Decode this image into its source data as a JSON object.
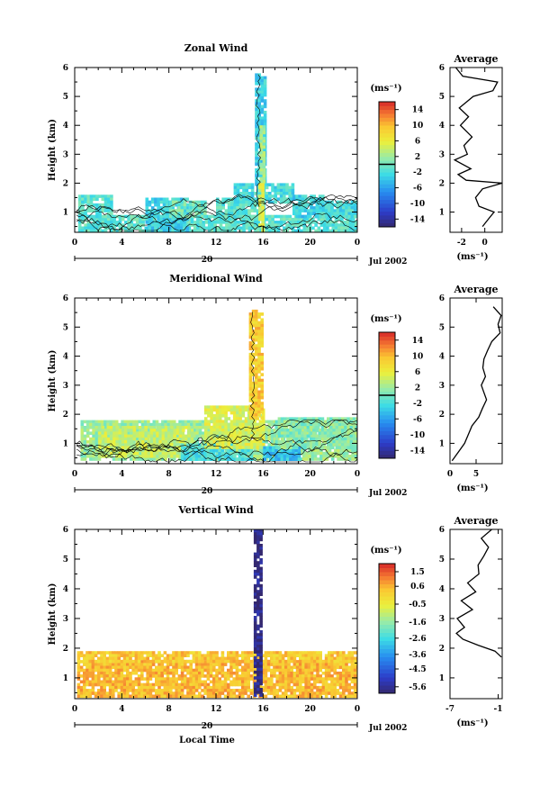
{
  "figure": {
    "xlabel": "Local Time",
    "date_label": "Jul 2002",
    "day_label": "20",
    "cbar_unit": "(ms⁻¹)",
    "profile_title": "Average",
    "profile_unit": "(ms⁻¹)"
  },
  "chart_data": [
    {
      "type": "heatmap",
      "title": "Zonal Wind",
      "ylabel": "Height (km)",
      "xlabel": "",
      "x_range": [
        0,
        24
      ],
      "y_range": [
        0.3,
        6
      ],
      "x_ticks": [
        "0",
        "4",
        "8",
        "12",
        "16",
        "20",
        "0"
      ],
      "y_ticks": [
        "1",
        "2",
        "3",
        "4",
        "5",
        "6"
      ],
      "colorbar": {
        "range": [
          -16,
          16
        ],
        "ticks": [
          "14",
          "10",
          "6",
          "2",
          "-2",
          "-6",
          "-10",
          "-14"
        ],
        "contour_level": 0
      },
      "regions": [
        {
          "t": [
            0.3,
            24
          ],
          "h": [
            0.4,
            0.9
          ],
          "value": -1
        },
        {
          "t": [
            0.3,
            3
          ],
          "h": [
            0.9,
            1.6
          ],
          "value": -1
        },
        {
          "t": [
            6,
            9.5
          ],
          "h": [
            0.4,
            1.5
          ],
          "value": -3
        },
        {
          "t": [
            8,
            11
          ],
          "h": [
            0.9,
            1.4
          ],
          "value": 0
        },
        {
          "t": [
            12,
            16
          ],
          "h": [
            0.9,
            1.5
          ],
          "value": -1
        },
        {
          "t": [
            13.5,
            18.5
          ],
          "h": [
            1.4,
            2.0
          ],
          "value": -2
        },
        {
          "t": [
            15.3,
            16.2
          ],
          "h": [
            2.0,
            5.8
          ],
          "value": -3
        },
        {
          "t": [
            15.7,
            16.0
          ],
          "h": [
            2.0,
            4.0
          ],
          "value": 2
        },
        {
          "t": [
            15.6,
            15.9
          ],
          "h": [
            0.4,
            2.0
          ],
          "value": 5
        },
        {
          "t": [
            18.5,
            21
          ],
          "h": [
            0.9,
            1.6
          ],
          "value": -3
        },
        {
          "t": [
            20.5,
            24
          ],
          "h": [
            0.9,
            1.4
          ],
          "value": -2
        }
      ],
      "profile": {
        "xlim": [
          -3,
          1.5
        ],
        "x_ticks": [
          "-2",
          "0"
        ],
        "h": [
          0.5,
          0.8,
          1.0,
          1.2,
          1.5,
          1.8,
          2.0,
          2.1,
          2.3,
          2.5,
          2.8,
          3.0,
          3.3,
          3.6,
          4.0,
          4.3,
          4.6,
          5.0,
          5.2,
          5.5,
          5.7,
          6.0
        ],
        "v": [
          -0.2,
          0.4,
          0.8,
          -0.5,
          -0.8,
          -0.2,
          1.5,
          -1.6,
          -2.3,
          -1.2,
          -2.6,
          -1.5,
          -1.8,
          -1.1,
          -2.1,
          -1.4,
          -2.2,
          -1.0,
          0.7,
          1.1,
          -1.9,
          -2.5
        ]
      }
    },
    {
      "type": "heatmap",
      "title": "Meridional Wind",
      "ylabel": "Height (km)",
      "xlabel": "",
      "x_range": [
        0,
        24
      ],
      "y_range": [
        0.3,
        6
      ],
      "x_ticks": [
        "0",
        "4",
        "8",
        "12",
        "16",
        "20",
        "0"
      ],
      "y_ticks": [
        "1",
        "2",
        "3",
        "4",
        "5",
        "6"
      ],
      "colorbar": {
        "range": [
          -16,
          16
        ],
        "ticks": [
          "14",
          "10",
          "6",
          "2",
          "-2",
          "-6",
          "-10",
          "-14"
        ],
        "contour_level": 0
      },
      "regions": [
        {
          "t": [
            0.5,
            24
          ],
          "h": [
            0.5,
            1.8
          ],
          "value": 2
        },
        {
          "t": [
            2,
            10
          ],
          "h": [
            0.6,
            1.6
          ],
          "value": 4
        },
        {
          "t": [
            9,
            15
          ],
          "h": [
            0.5,
            1.0
          ],
          "value": -2
        },
        {
          "t": [
            11,
            16
          ],
          "h": [
            0.9,
            2.3
          ],
          "value": 5
        },
        {
          "t": [
            14.8,
            15.8
          ],
          "h": [
            1.9,
            5.6
          ],
          "value": 9
        },
        {
          "t": [
            16,
            19
          ],
          "h": [
            0.5,
            0.9
          ],
          "value": -4
        },
        {
          "t": [
            17,
            24
          ],
          "h": [
            0.9,
            1.9
          ],
          "value": 1
        }
      ],
      "profile": {
        "xlim": [
          0,
          10
        ],
        "x_ticks": [
          "0",
          "5"
        ],
        "h": [
          0.4,
          0.6,
          0.8,
          1.0,
          1.3,
          1.6,
          1.9,
          2.2,
          2.5,
          2.8,
          3.0,
          3.3,
          3.6,
          3.9,
          4.2,
          4.5,
          4.8,
          5.1,
          5.4,
          5.7
        ],
        "v": [
          0.4,
          1.2,
          2.0,
          2.8,
          3.5,
          4.2,
          5.5,
          6.2,
          7.0,
          6.4,
          6.0,
          6.8,
          6.3,
          6.5,
          7.2,
          8.0,
          9.6,
          9.2,
          9.8,
          8.3
        ]
      }
    },
    {
      "type": "heatmap",
      "title": "Vertical Wind",
      "ylabel": "Height (km)",
      "xlabel": "Local Time",
      "x_range": [
        0,
        24
      ],
      "y_range": [
        0.3,
        6
      ],
      "x_ticks": [
        "0",
        "4",
        "8",
        "12",
        "16",
        "20",
        "0"
      ],
      "y_ticks": [
        "1",
        "2",
        "3",
        "4",
        "5",
        "6"
      ],
      "colorbar": {
        "range": [
          -6,
          2
        ],
        "ticks": [
          "1.5",
          "0.6",
          "-0.5",
          "-1.6",
          "-2.6",
          "-3.6",
          "-4.5",
          "-5.6"
        ],
        "contour_level": null
      },
      "regions": [
        {
          "t": [
            0.2,
            24
          ],
          "h": [
            0.4,
            1.6
          ],
          "value": 0.5
        },
        {
          "t": [
            0.2,
            24
          ],
          "h": [
            1.6,
            1.9
          ],
          "value": 0.3
        },
        {
          "t": [
            15.2,
            15.8
          ],
          "h": [
            0.4,
            6.0
          ],
          "value": -5.8
        }
      ],
      "profile": {
        "xlim": [
          -7,
          -0.5
        ],
        "x_ticks": [
          "-7",
          "-1"
        ],
        "h": [
          1.7,
          1.9,
          2.1,
          2.3,
          2.5,
          2.7,
          3.0,
          3.3,
          3.6,
          3.9,
          4.2,
          4.5,
          4.8,
          5.1,
          5.4,
          5.7,
          6.0
        ],
        "v": [
          -0.6,
          -1.4,
          -3.5,
          -5.4,
          -6.2,
          -5.2,
          -6.1,
          -4.2,
          -5.6,
          -3.8,
          -4.8,
          -3.4,
          -3.5,
          -2.8,
          -2.2,
          -3.1,
          -1.8
        ]
      }
    }
  ]
}
